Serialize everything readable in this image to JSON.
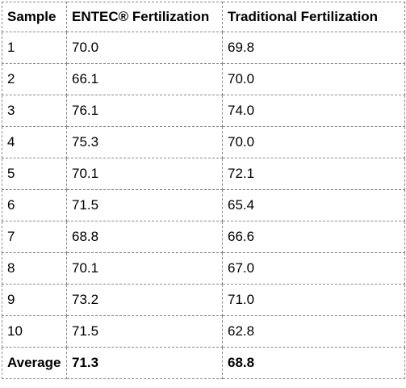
{
  "table": {
    "headers": [
      "Sample",
      "ENTEC® Fertilization",
      "Traditional Fertilization"
    ],
    "rows": [
      [
        "1",
        "70.0",
        "69.8"
      ],
      [
        "2",
        "66.1",
        "70.0"
      ],
      [
        "3",
        "76.1",
        "74.0"
      ],
      [
        "4",
        "75.3",
        "70.0"
      ],
      [
        "5",
        "70.1",
        "72.1"
      ],
      [
        "6",
        "71.5",
        "65.4"
      ],
      [
        "7",
        "68.8",
        "66.6"
      ],
      [
        "8",
        "70.1",
        "67.0"
      ],
      [
        "9",
        "73.2",
        "71.0"
      ],
      [
        "10",
        "71.5",
        "62.8"
      ]
    ],
    "average_row": [
      "Average",
      "71.3",
      "68.8"
    ]
  }
}
